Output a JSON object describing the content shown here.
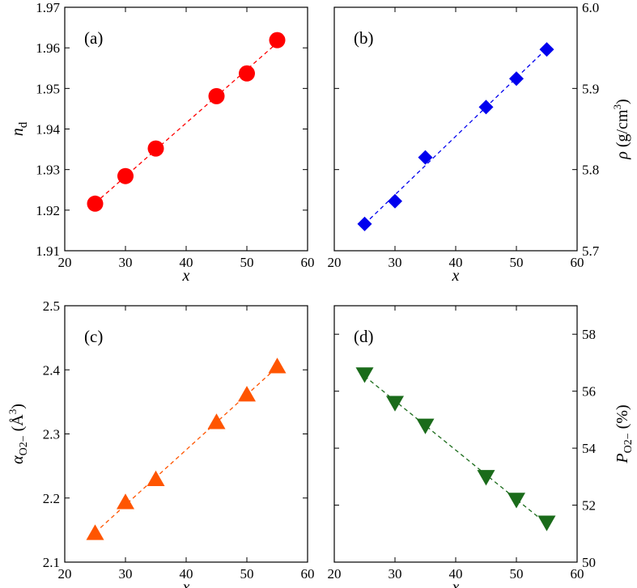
{
  "chart_data": [
    {
      "type": "scatter",
      "panel_label": "(a)",
      "x": [
        25,
        30,
        35,
        45,
        50,
        55
      ],
      "series": [
        {
          "name": "n_d",
          "values": [
            1.9216,
            1.9284,
            1.9352,
            1.9481,
            1.9537,
            1.9619
          ],
          "color": "#ff0000",
          "marker": "circle",
          "fit_line": true
        }
      ],
      "xlabel": "x",
      "ylabel": "nd",
      "ylabel_main": "n",
      "ylabel_sub": "d",
      "xlim": [
        20,
        60
      ],
      "ylim": [
        1.91,
        1.97
      ],
      "xticks": [
        "20",
        "30",
        "40",
        "50",
        "60"
      ],
      "yticks": [
        "1.91",
        "1.92",
        "1.93",
        "1.94",
        "1.95",
        "1.96",
        "1.97"
      ],
      "y_axis_side": "left"
    },
    {
      "type": "scatter",
      "panel_label": "(b)",
      "x": [
        25,
        30,
        35,
        45,
        50,
        55
      ],
      "series": [
        {
          "name": "density",
          "values": [
            5.733,
            5.761,
            5.815,
            5.877,
            5.912,
            5.948
          ],
          "color": "#0000ee",
          "marker": "diamond",
          "fit_line": true
        }
      ],
      "xlabel": "x",
      "ylabel": "ρ (g/cm3)",
      "ylabel_main": "ρ (g/cm",
      "ylabel_sup": "3",
      "ylabel_end": ")",
      "xlim": [
        20,
        60
      ],
      "ylim": [
        5.7,
        6.0
      ],
      "xticks": [
        "20",
        "30",
        "40",
        "50",
        "60"
      ],
      "yticks": [
        "5.7",
        "5.8",
        "5.9",
        "6.0"
      ],
      "y_axis_side": "right"
    },
    {
      "type": "scatter",
      "panel_label": "(c)",
      "x": [
        25,
        30,
        35,
        45,
        50,
        55
      ],
      "series": [
        {
          "name": "alpha_O2-",
          "values": [
            2.145,
            2.193,
            2.229,
            2.318,
            2.361,
            2.405
          ],
          "color": "#ff5500",
          "marker": "triangle-up",
          "fit_line": true
        }
      ],
      "xlabel": "x",
      "ylabel": "αO2− (Å3)",
      "ylabel_main": "α",
      "ylabel_sub": "O2−",
      "ylabel_paren": " (Å",
      "ylabel_sup": "3",
      "ylabel_end": ")",
      "xlim": [
        20,
        60
      ],
      "ylim": [
        2.1,
        2.5
      ],
      "xticks": [
        "20",
        "30",
        "40",
        "50",
        "60"
      ],
      "yticks": [
        "2.1",
        "2.2",
        "2.3",
        "2.4",
        "2.5"
      ],
      "y_axis_side": "left"
    },
    {
      "type": "scatter",
      "panel_label": "(d)",
      "x": [
        25,
        30,
        35,
        45,
        50,
        55
      ],
      "series": [
        {
          "name": "P_O2-",
          "values": [
            56.6,
            55.6,
            54.8,
            53.0,
            52.2,
            51.4
          ],
          "color": "#1a6b1a",
          "marker": "triangle-down",
          "fit_line": true
        }
      ],
      "xlabel": "x",
      "ylabel": "PO2− (%)",
      "ylabel_main": "P",
      "ylabel_sub": "O2−",
      "ylabel_end": " (%)",
      "xlim": [
        20,
        60
      ],
      "ylim": [
        50,
        59
      ],
      "xticks": [
        "20",
        "30",
        "40",
        "50",
        "60"
      ],
      "yticks": [
        "50",
        "52",
        "54",
        "56",
        "58"
      ],
      "y_axis_side": "right"
    }
  ]
}
